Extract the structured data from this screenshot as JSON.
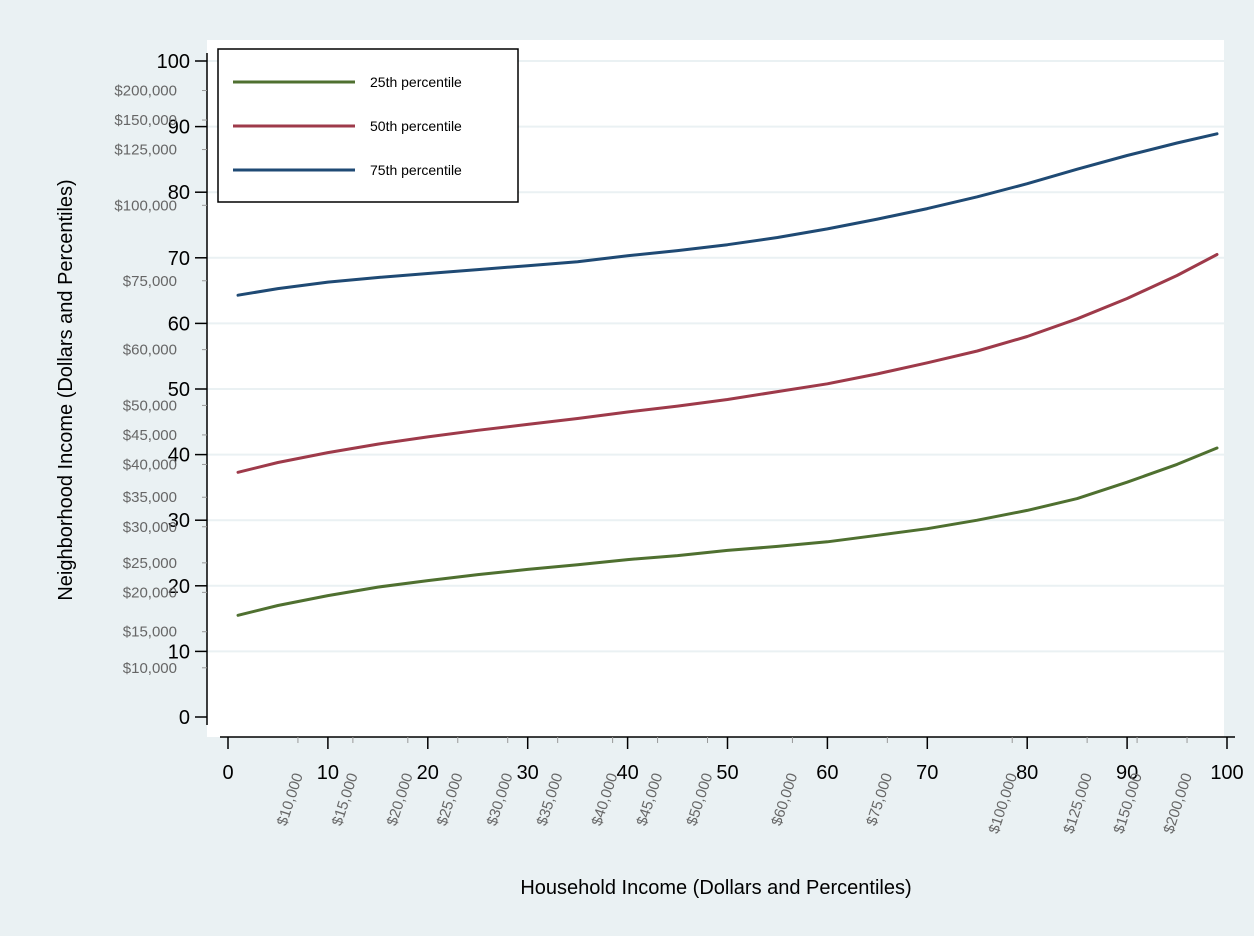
{
  "colors": {
    "outer_background": "#eaf1f3",
    "plot_background": "#ffffff",
    "gridline": "#eaf1f3",
    "axis": "#000000",
    "dollar_tick_text": "#666666"
  },
  "chart_data": {
    "type": "line",
    "xlabel": "Household Income (Dollars and Percentiles)",
    "ylabel": "Neighborhood Income (Dollars and Percentiles)",
    "xlim": [
      0,
      100
    ],
    "ylim": [
      0,
      100
    ],
    "grid": true,
    "legend_position": "top-left",
    "x_ticks": [
      0,
      10,
      20,
      30,
      40,
      50,
      60,
      70,
      80,
      90,
      100
    ],
    "y_ticks": [
      0,
      10,
      20,
      30,
      40,
      50,
      60,
      70,
      80,
      90,
      100
    ],
    "x_dollar_ticks": [
      {
        "value": 7,
        "label": "$10,000"
      },
      {
        "value": 12.5,
        "label": "$15,000"
      },
      {
        "value": 18,
        "label": "$20,000"
      },
      {
        "value": 23,
        "label": "$25,000"
      },
      {
        "value": 28,
        "label": "$30,000"
      },
      {
        "value": 33,
        "label": "$35,000"
      },
      {
        "value": 38.5,
        "label": "$40,000"
      },
      {
        "value": 43,
        "label": "$45,000"
      },
      {
        "value": 48,
        "label": "$50,000"
      },
      {
        "value": 56.5,
        "label": "$60,000"
      },
      {
        "value": 66,
        "label": "$75,000"
      },
      {
        "value": 78.5,
        "label": "$100,000"
      },
      {
        "value": 86,
        "label": "$125,000"
      },
      {
        "value": 91,
        "label": "$150,000"
      },
      {
        "value": 96,
        "label": "$200,000"
      }
    ],
    "y_dollar_ticks": [
      {
        "value": 95.5,
        "label": "$200,000"
      },
      {
        "value": 91,
        "label": "$150,000"
      },
      {
        "value": 86.5,
        "label": "$125,000"
      },
      {
        "value": 78,
        "label": "$100,000"
      },
      {
        "value": 66.5,
        "label": "$75,000"
      },
      {
        "value": 56,
        "label": "$60,000"
      },
      {
        "value": 47.5,
        "label": "$50,000"
      },
      {
        "value": 43,
        "label": "$45,000"
      },
      {
        "value": 38.5,
        "label": "$40,000"
      },
      {
        "value": 33.5,
        "label": "$35,000"
      },
      {
        "value": 29,
        "label": "$30,000"
      },
      {
        "value": 23.5,
        "label": "$25,000"
      },
      {
        "value": 19,
        "label": "$20,000"
      },
      {
        "value": 13,
        "label": "$15,000"
      },
      {
        "value": 7.5,
        "label": "$10,000"
      }
    ],
    "series": [
      {
        "name": "25th percentile",
        "color": "#4f7030",
        "points": [
          [
            1,
            15.5
          ],
          [
            5,
            17
          ],
          [
            10,
            18.5
          ],
          [
            15,
            19.8
          ],
          [
            20,
            20.8
          ],
          [
            25,
            21.7
          ],
          [
            30,
            22.5
          ],
          [
            35,
            23.2
          ],
          [
            40,
            24
          ],
          [
            45,
            24.6
          ],
          [
            50,
            25.4
          ],
          [
            55,
            26
          ],
          [
            60,
            26.7
          ],
          [
            65,
            27.7
          ],
          [
            70,
            28.7
          ],
          [
            75,
            30
          ],
          [
            80,
            31.5
          ],
          [
            85,
            33.3
          ],
          [
            90,
            35.8
          ],
          [
            95,
            38.5
          ],
          [
            99,
            41
          ]
        ]
      },
      {
        "name": "50th percentile",
        "color": "#9e3a4a",
        "points": [
          [
            1,
            37.3
          ],
          [
            5,
            38.8
          ],
          [
            10,
            40.3
          ],
          [
            15,
            41.6
          ],
          [
            20,
            42.7
          ],
          [
            25,
            43.7
          ],
          [
            30,
            44.6
          ],
          [
            35,
            45.5
          ],
          [
            40,
            46.5
          ],
          [
            45,
            47.4
          ],
          [
            50,
            48.4
          ],
          [
            55,
            49.6
          ],
          [
            60,
            50.8
          ],
          [
            65,
            52.3
          ],
          [
            70,
            54
          ],
          [
            75,
            55.8
          ],
          [
            80,
            58
          ],
          [
            85,
            60.7
          ],
          [
            90,
            63.8
          ],
          [
            95,
            67.3
          ],
          [
            99,
            70.5
          ]
        ]
      },
      {
        "name": "75th percentile",
        "color": "#1f4a74",
        "points": [
          [
            1,
            64.3
          ],
          [
            5,
            65.3
          ],
          [
            10,
            66.3
          ],
          [
            15,
            67
          ],
          [
            20,
            67.6
          ],
          [
            25,
            68.2
          ],
          [
            30,
            68.8
          ],
          [
            35,
            69.4
          ],
          [
            40,
            70.3
          ],
          [
            45,
            71.1
          ],
          [
            50,
            72
          ],
          [
            55,
            73.1
          ],
          [
            60,
            74.4
          ],
          [
            65,
            75.9
          ],
          [
            70,
            77.5
          ],
          [
            75,
            79.3
          ],
          [
            80,
            81.3
          ],
          [
            85,
            83.5
          ],
          [
            90,
            85.6
          ],
          [
            95,
            87.5
          ],
          [
            99,
            88.9
          ]
        ]
      }
    ]
  }
}
